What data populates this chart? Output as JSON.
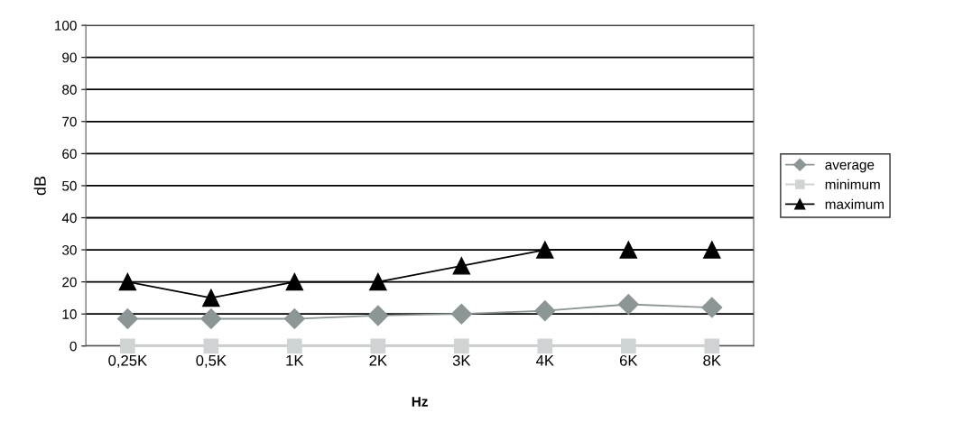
{
  "chart_data": {
    "type": "line",
    "xlabel": "Hz",
    "ylabel": "dB",
    "categories": [
      "0,25K",
      "0,5K",
      "1K",
      "2K",
      "3K",
      "4K",
      "6K",
      "8K"
    ],
    "series": [
      {
        "name": "average",
        "color": "#8c9696",
        "marker": "diamond",
        "values": [
          8.5,
          8.5,
          8.5,
          9.5,
          10,
          11,
          13,
          12
        ]
      },
      {
        "name": "minimum",
        "color": "#cfd3d3",
        "marker": "square",
        "values": [
          0,
          0,
          0,
          0,
          0,
          0,
          0,
          0
        ]
      },
      {
        "name": "maximum",
        "color": "#000000",
        "marker": "triangle",
        "values": [
          20,
          15,
          20,
          20,
          25,
          30,
          30,
          30
        ]
      }
    ],
    "ylim": [
      0,
      100
    ],
    "yticks": [
      0,
      10,
      20,
      30,
      40,
      50,
      60,
      70,
      80,
      90,
      100
    ],
    "grid": "y",
    "legend": "right"
  }
}
